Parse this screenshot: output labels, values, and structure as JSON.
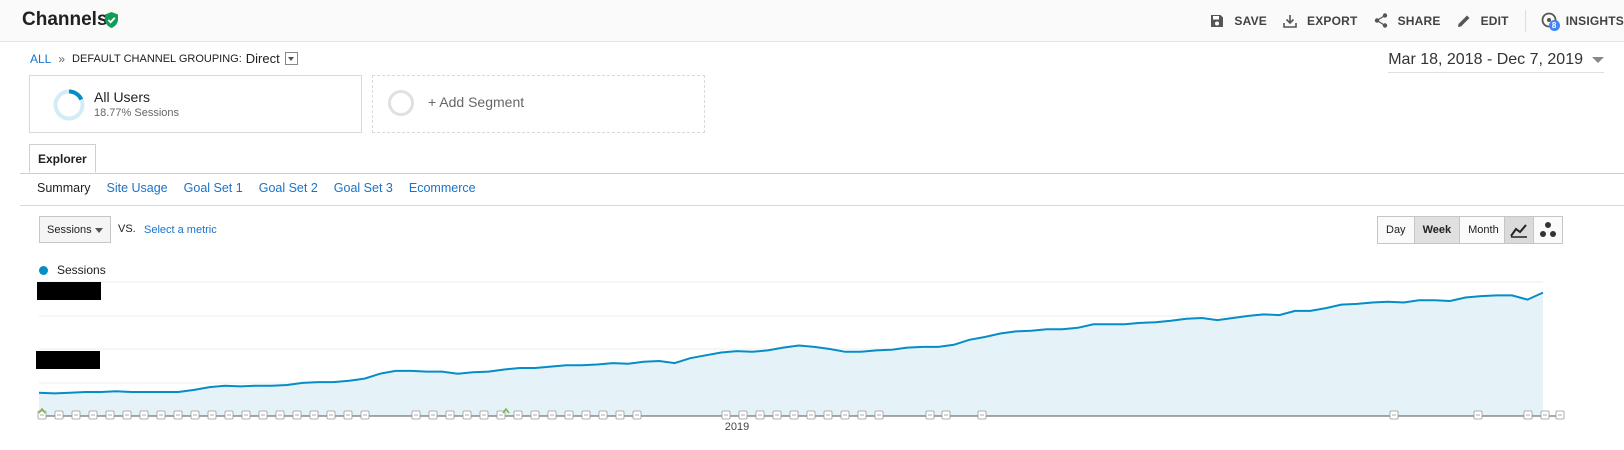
{
  "header": {
    "title": "Channels",
    "actions": {
      "save": "SAVE",
      "export": "EXPORT",
      "share": "SHARE",
      "edit": "EDIT",
      "insights": "INSIGHTS"
    },
    "insights_badge": "8"
  },
  "breadcrumb": {
    "all": "ALL",
    "separator": "»",
    "grouping_label": "DEFAULT CHANNEL GROUPING:",
    "grouping_value": "Direct"
  },
  "date_range": "Mar 18, 2018 - Dec 7, 2019",
  "segments": {
    "primary": {
      "name": "All Users",
      "detail": "18.77% Sessions"
    },
    "add": "+ Add Segment"
  },
  "tabs": {
    "explorer": "Explorer"
  },
  "subnav": [
    "Summary",
    "Site Usage",
    "Goal Set 1",
    "Goal Set 2",
    "Goal Set 3",
    "Ecommerce"
  ],
  "controls": {
    "metric": "Sessions",
    "vs": "VS.",
    "select_metric": "Select a metric",
    "periods": [
      "Day",
      "Week",
      "Month"
    ],
    "active_period": "Week"
  },
  "colors": {
    "accent": "#058dc7",
    "fill": "#e5f3f9",
    "link": "#1a73c8",
    "verified": "#0f9d58"
  },
  "chart_data": {
    "type": "area",
    "series": [
      {
        "name": "Sessions",
        "values": [
          0.33,
          0.32,
          0.33,
          0.34,
          0.34,
          0.35,
          0.34,
          0.34,
          0.34,
          0.34,
          0.37,
          0.41,
          0.43,
          0.42,
          0.43,
          0.43,
          0.44,
          0.47,
          0.48,
          0.48,
          0.5,
          0.53,
          0.6,
          0.64,
          0.64,
          0.63,
          0.63,
          0.6,
          0.62,
          0.63,
          0.66,
          0.68,
          0.68,
          0.7,
          0.72,
          0.72,
          0.73,
          0.75,
          0.74,
          0.77,
          0.78,
          0.75,
          0.82,
          0.86,
          0.9,
          0.92,
          0.91,
          0.93,
          0.97,
          1.0,
          0.98,
          0.95,
          0.91,
          0.91,
          0.93,
          0.94,
          0.97,
          0.98,
          0.98,
          1.01,
          1.08,
          1.12,
          1.17,
          1.2,
          1.21,
          1.23,
          1.23,
          1.25,
          1.3,
          1.3,
          1.3,
          1.32,
          1.33,
          1.35,
          1.38,
          1.39,
          1.36,
          1.39,
          1.42,
          1.44,
          1.43,
          1.49,
          1.49,
          1.53,
          1.58,
          1.59,
          1.61,
          1.62,
          1.61,
          1.64,
          1.64,
          1.63,
          1.68,
          1.7,
          1.71,
          1.71,
          1.65,
          1.75
        ]
      }
    ],
    "x_tick_label": "2019",
    "y_tick_labels_redacted": true,
    "grid": true
  }
}
